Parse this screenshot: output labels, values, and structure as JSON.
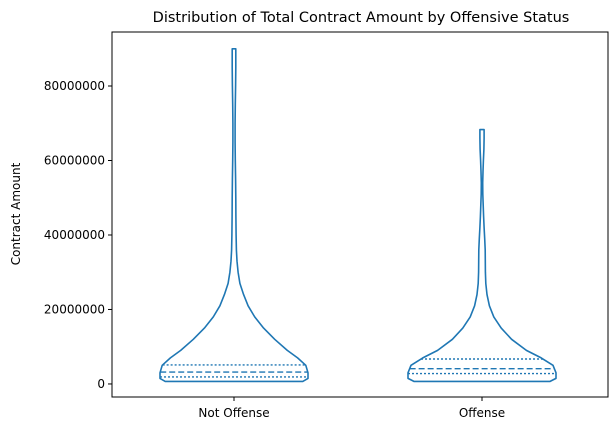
{
  "chart_data": {
    "type": "violin",
    "title": "Distribution of Total Contract Amount by Offensive Status",
    "xlabel": "",
    "ylabel": "Contract Amount",
    "ylim": [
      -3500000,
      94500000
    ],
    "yticks": [
      0,
      20000000,
      40000000,
      60000000,
      80000000
    ],
    "ytick_labels": [
      "0",
      "20000000",
      "40000000",
      "60000000",
      "80000000"
    ],
    "categories": [
      "Not Offense",
      "Offense"
    ],
    "grid": false,
    "color": "#1f77b4",
    "violins": [
      {
        "category": "Not Offense",
        "min": 700000,
        "q1": 1900000,
        "median": 3200000,
        "q3": 5100000,
        "max": 90000000,
        "profile": [
          [
            700000,
            0.93
          ],
          [
            1500000,
            1.0
          ],
          [
            3000000,
            1.0
          ],
          [
            5000000,
            0.97
          ],
          [
            7000000,
            0.86
          ],
          [
            9000000,
            0.72
          ],
          [
            12000000,
            0.55
          ],
          [
            15000000,
            0.4
          ],
          [
            18000000,
            0.28
          ],
          [
            21000000,
            0.19
          ],
          [
            24000000,
            0.13
          ],
          [
            27000000,
            0.08
          ],
          [
            30000000,
            0.055
          ],
          [
            33000000,
            0.04
          ],
          [
            36000000,
            0.032
          ],
          [
            40000000,
            0.028
          ],
          [
            45000000,
            0.026
          ],
          [
            50000000,
            0.025
          ],
          [
            55000000,
            0.022
          ],
          [
            60000000,
            0.018
          ],
          [
            65000000,
            0.015
          ],
          [
            70000000,
            0.015
          ],
          [
            75000000,
            0.018
          ],
          [
            80000000,
            0.022
          ],
          [
            85000000,
            0.024
          ],
          [
            90000000,
            0.024
          ]
        ]
      },
      {
        "category": "Offense",
        "min": 700000,
        "q1": 2800000,
        "median": 4100000,
        "q3": 6700000,
        "max": 68300000,
        "profile": [
          [
            700000,
            0.92
          ],
          [
            1500000,
            1.0
          ],
          [
            3000000,
            1.0
          ],
          [
            5000000,
            0.96
          ],
          [
            7000000,
            0.8
          ],
          [
            9000000,
            0.6
          ],
          [
            12000000,
            0.4
          ],
          [
            15000000,
            0.26
          ],
          [
            18000000,
            0.16
          ],
          [
            21000000,
            0.1
          ],
          [
            24000000,
            0.068
          ],
          [
            27000000,
            0.052
          ],
          [
            30000000,
            0.046
          ],
          [
            33000000,
            0.044
          ],
          [
            36000000,
            0.043
          ],
          [
            39000000,
            0.037
          ],
          [
            42000000,
            0.029
          ],
          [
            45000000,
            0.022
          ],
          [
            48000000,
            0.016
          ],
          [
            51000000,
            0.011
          ],
          [
            54000000,
            0.01
          ],
          [
            57000000,
            0.013
          ],
          [
            60000000,
            0.019
          ],
          [
            63000000,
            0.025
          ],
          [
            66000000,
            0.028
          ],
          [
            68300000,
            0.028
          ]
        ]
      }
    ]
  }
}
